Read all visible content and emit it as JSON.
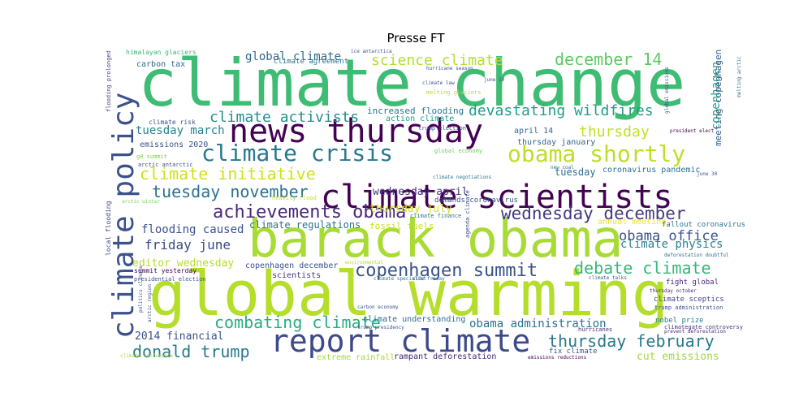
{
  "chart_data": {
    "type": "wordcloud",
    "title": "Presse FT",
    "words": [
      {
        "text": "climate change",
        "color": "#3fbc73"
      },
      {
        "text": "global warming",
        "color": "#b5de2b"
      },
      {
        "text": "barack obama",
        "color": "#a8db34"
      },
      {
        "text": "news thursday",
        "color": "#440154"
      },
      {
        "text": "climate scientists",
        "color": "#440154"
      },
      {
        "text": "report climate",
        "color": "#3e4989"
      },
      {
        "text": "climate policy",
        "color": "#3b528b"
      },
      {
        "text": "climate crisis",
        "color": "#2a788e"
      },
      {
        "text": "obama shortly",
        "color": "#bddf26"
      },
      {
        "text": "copenhagen summit",
        "color": "#3b528b"
      },
      {
        "text": "achievements obama",
        "color": "#482878"
      },
      {
        "text": "wednesday december",
        "color": "#443a83"
      },
      {
        "text": "december 14",
        "color": "#5ec962"
      },
      {
        "text": "climate initiative",
        "color": "#d0e11c"
      },
      {
        "text": "tuesday november",
        "color": "#2c728e"
      },
      {
        "text": "debate climate",
        "color": "#35b779"
      },
      {
        "text": "combating climate",
        "color": "#27ad81"
      },
      {
        "text": "donald trump",
        "color": "#2a788e"
      },
      {
        "text": "thursday february",
        "color": "#2a788e"
      },
      {
        "text": "science climate",
        "color": "#b5de2b"
      },
      {
        "text": "climate activists",
        "color": "#21918c"
      },
      {
        "text": "devastating wildfires",
        "color": "#1f9e89"
      },
      {
        "text": "thursday",
        "color": "#c2df23"
      },
      {
        "text": "obama office",
        "color": "#3b528b"
      },
      {
        "text": "friday june",
        "color": "#3e4989"
      },
      {
        "text": "global climate",
        "color": "#31688e"
      },
      {
        "text": "tuesday march",
        "color": "#26828e"
      },
      {
        "text": "flooding caused",
        "color": "#3b528b"
      },
      {
        "text": "climate physics",
        "color": "#26828e"
      },
      {
        "text": "obama administration",
        "color": "#2c728e"
      },
      {
        "text": "wednesday april",
        "color": "#46337e"
      },
      {
        "text": "copenhagen",
        "color": "#20a486"
      },
      {
        "text": "editor wednesday",
        "color": "#b5de2b"
      },
      {
        "text": "thursday july",
        "color": "#d8e219"
      },
      {
        "text": "2014 financial",
        "color": "#3b528b"
      },
      {
        "text": "cut emissions",
        "color": "#a0da39"
      },
      {
        "text": "climate regulations",
        "color": "#2c728e"
      },
      {
        "text": "tuesday",
        "color": "#2c728e"
      },
      {
        "text": "fossil fuels",
        "color": "#c8e020"
      },
      {
        "text": "increased flooding",
        "color": "#2c728e"
      },
      {
        "text": "action climate",
        "color": "#1f9e89"
      },
      {
        "text": "climate understanding",
        "color": "#2c728e"
      },
      {
        "text": "copenhagen december",
        "color": "#3b528b"
      },
      {
        "text": "scientists",
        "color": "#443983"
      },
      {
        "text": "meeting copenhagen",
        "color": "#365c8d"
      },
      {
        "text": "thursday january",
        "color": "#31688e"
      },
      {
        "text": "april 14",
        "color": "#31688e"
      },
      {
        "text": "coronavirus pandemic",
        "color": "#2c728e"
      },
      {
        "text": "annual meeting",
        "color": "#f1e51d"
      },
      {
        "text": "fallout coronavirus",
        "color": "#2c728e"
      },
      {
        "text": "fight global",
        "color": "#482878"
      },
      {
        "text": "climate sceptics",
        "color": "#414487"
      },
      {
        "text": "nobel prize",
        "color": "#26828e"
      },
      {
        "text": "fix climate",
        "color": "#3b528b"
      },
      {
        "text": "rampant deforestation",
        "color": "#482878"
      },
      {
        "text": "extreme rainfall",
        "color": "#a0da39"
      },
      {
        "text": "demands coronavirus",
        "color": "#3b528b"
      },
      {
        "text": "carbon tax",
        "color": "#31688e"
      },
      {
        "text": "emissions 2020",
        "color": "#3b528b"
      },
      {
        "text": "climate agreement",
        "color": "#2c728e"
      },
      {
        "text": "himalayan glaciers",
        "color": "#35b779"
      },
      {
        "text": "climate risk",
        "color": "#3b528b"
      },
      {
        "text": "trump election",
        "color": "#3b528b"
      },
      {
        "text": "g8 summit",
        "color": "#7ad151"
      },
      {
        "text": "arctic antarctic",
        "color": "#3b528b"
      },
      {
        "text": "global economy",
        "color": "#6ccd5a"
      },
      {
        "text": "climate negotiations",
        "color": "#2c728e"
      },
      {
        "text": "heavily flood",
        "color": "#c2df23"
      },
      {
        "text": "arctic winter",
        "color": "#7ad151"
      },
      {
        "text": "summit yesterday",
        "color": "#440154"
      },
      {
        "text": "presidential election",
        "color": "#3b528b"
      },
      {
        "text": "local flooding",
        "color": "#3e4989"
      },
      {
        "text": "flooding prolonged",
        "color": "#414487"
      },
      {
        "text": "arctic region",
        "color": "#3b528b"
      },
      {
        "text": "politics climate",
        "color": "#3b528b"
      },
      {
        "text": "climate conference",
        "color": "#a0da39"
      },
      {
        "text": "climate specialist",
        "color": "#2c728e"
      },
      {
        "text": "side friday",
        "color": "#2c728e"
      },
      {
        "text": "carbon economy",
        "color": "#3b528b"
      },
      {
        "text": "trump presidency",
        "color": "#3b528b"
      },
      {
        "text": "hurricanes",
        "color": "#482878"
      },
      {
        "text": "emissions reductions",
        "color": "#440154"
      },
      {
        "text": "climategate controversy",
        "color": "#46337e"
      },
      {
        "text": "prevent deforestation",
        "color": "#482878"
      },
      {
        "text": "trump administration",
        "color": "#3b528b"
      },
      {
        "text": "thursday october",
        "color": "#482878"
      },
      {
        "text": "climate talks",
        "color": "#3b528b"
      },
      {
        "text": "deforestation doubtful",
        "color": "#2c728e"
      },
      {
        "text": "june 30",
        "color": "#3b528b"
      },
      {
        "text": "president elect",
        "color": "#440154"
      },
      {
        "text": "global emissions",
        "color": "#3b528b"
      },
      {
        "text": "melting arctic",
        "color": "#31688e"
      },
      {
        "text": "june 10",
        "color": "#3b528b"
      },
      {
        "text": "climate law",
        "color": "#3b528b"
      },
      {
        "text": "melting glaciers",
        "color": "#b5de2b"
      },
      {
        "text": "hurricane season",
        "color": "#3b528b"
      },
      {
        "text": "ice antarctica",
        "color": "#3b528b"
      },
      {
        "text": "new coal",
        "color": "#2c728e"
      },
      {
        "text": "climate finance",
        "color": "#2c728e"
      },
      {
        "text": "agenda climate",
        "color": "#3b528b"
      },
      {
        "text": "environmental",
        "color": "#b5de2b"
      }
    ]
  }
}
